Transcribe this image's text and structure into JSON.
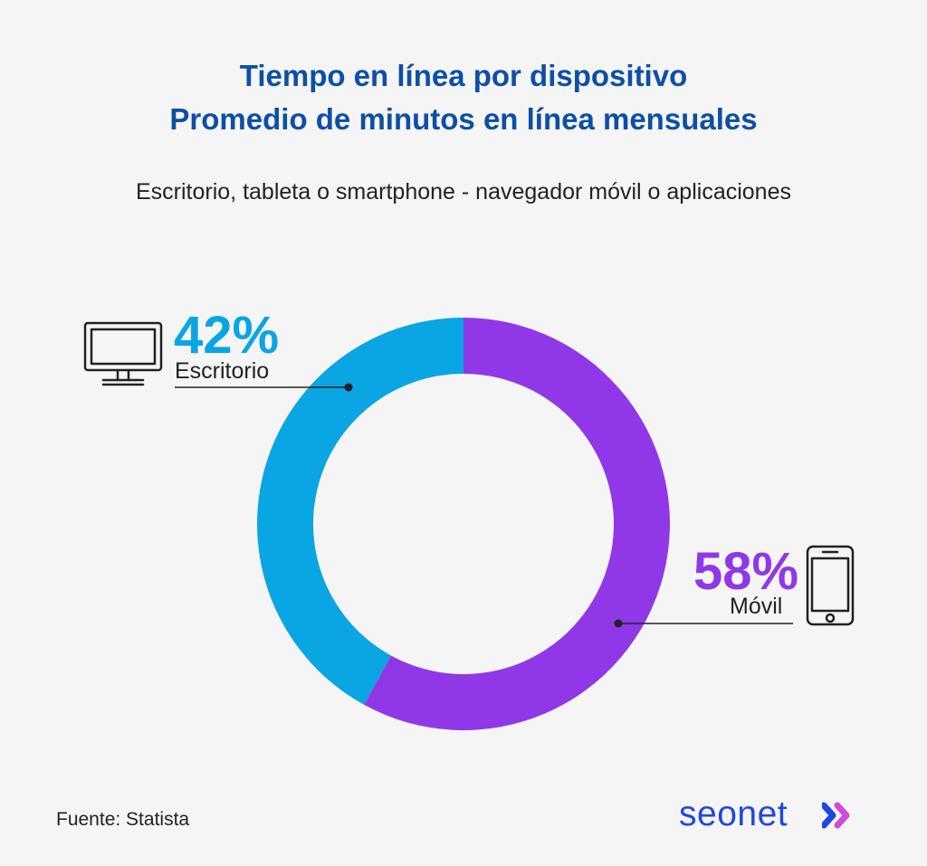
{
  "header": {
    "title_line1": "Tiempo en línea por dispositivo",
    "title_line2": "Promedio de minutos en línea mensuales",
    "subtitle": "Escritorio, tableta o smartphone - navegador móvil o aplicaciones"
  },
  "chart_data": {
    "type": "pie",
    "donut": true,
    "categories": [
      "Escritorio",
      "Móvil"
    ],
    "values": [
      42,
      58
    ],
    "unit": "%",
    "labels": [
      "42%",
      "58%"
    ],
    "colors": [
      "#0aa5e3",
      "#9038e8"
    ]
  },
  "icons": {
    "desktop": "monitor-icon",
    "mobile": "smartphone-icon",
    "brand": "double-chevron-right-icon"
  },
  "footer": {
    "source": "Fuente: Statista",
    "brand": "seonet"
  }
}
